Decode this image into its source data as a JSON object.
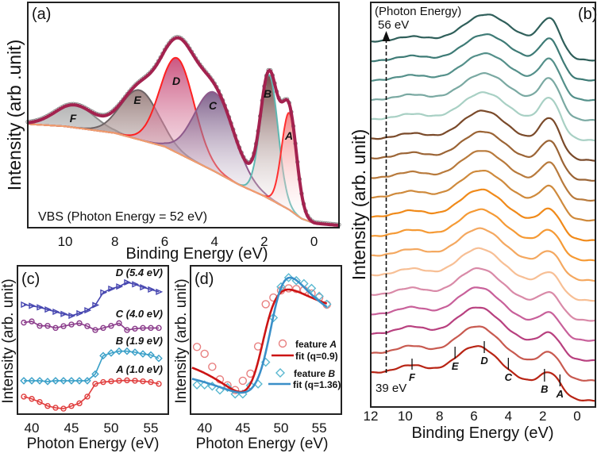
{
  "chart_data": [
    {
      "panel": "(a)",
      "type": "line",
      "xlabel": "Binding Energy (eV)",
      "ylabel": "Intensity (arb .unit)",
      "annotation": "VBS (Photon Energy = 52 eV)",
      "xlim": [
        11.5,
        -1
      ],
      "ylim": [
        0,
        100
      ],
      "xticks": [
        10,
        8,
        6,
        4,
        2,
        0
      ],
      "background": {
        "x": [
          11.5,
          10,
          8,
          6,
          4,
          3,
          2,
          1,
          0.5,
          0,
          -1
        ],
        "y": [
          46,
          45,
          42,
          36,
          25,
          19,
          14,
          8,
          4,
          2,
          1
        ]
      },
      "components": [
        {
          "label": "F",
          "center": 9.6,
          "amplitude": 10,
          "sigma": 0.8,
          "stroke": "#8a8a8a",
          "fill": "#a8a8a8"
        },
        {
          "label": "E",
          "center": 7.0,
          "amplitude": 22,
          "sigma": 0.75,
          "stroke": "#6e6466",
          "fill": "#8c6e6c"
        },
        {
          "label": "D",
          "center": 5.5,
          "amplitude": 42,
          "sigma": 0.68,
          "stroke": "#ff2020",
          "fill": "#c2386a"
        },
        {
          "label": "C",
          "center": 4.0,
          "amplitude": 35,
          "sigma": 0.8,
          "stroke": "#8e5a8c",
          "fill": "#6a4678"
        },
        {
          "label": "B",
          "center": 1.8,
          "amplitude": 55,
          "sigma": 0.35,
          "stroke": "#60b8b2",
          "fill": "#5a2a26"
        },
        {
          "label": "A",
          "center": 1.0,
          "amplitude": 43,
          "sigma": 0.3,
          "stroke": "#ff3030",
          "fill": "#f07070"
        }
      ],
      "envelope_color": "#a3224f",
      "data_marker_color": "#8c8c8c",
      "background_color": "#f0a070"
    },
    {
      "panel": "(b)",
      "type": "line",
      "xlabel": "Binding Energy (eV)",
      "ylabel": "Intensity (arb. unit)",
      "xlim": [
        12,
        -1.06
      ],
      "xticks": [
        12,
        10,
        8,
        6,
        4,
        2,
        0
      ],
      "arrow_label": "(Photon Energy)",
      "top_label": "56 eV",
      "bottom_label": "39 eV",
      "spectra": {
        "photon_energy": [
          39,
          40,
          41,
          42,
          43,
          44,
          45,
          46,
          47,
          48,
          49,
          50,
          51,
          52,
          53,
          54,
          55,
          56
        ],
        "colors": [
          "#b82414",
          "#c85a50",
          "#b8407f",
          "#c8609a",
          "#d98aa8",
          "#f7bf95",
          "#f4a860",
          "#f59a35",
          "#f08a1a",
          "#cf8a3c",
          "#b87a3c",
          "#9b6435",
          "#7a4a2a",
          "#a8d0c4",
          "#7aa9a2",
          "#54908a",
          "#3e7b76",
          "#2f5f5a"
        ],
        "peak_AB_amplitude": [
          16,
          16,
          15,
          15,
          15,
          15,
          16,
          17,
          18,
          21,
          25,
          27,
          30,
          30,
          29,
          28,
          28,
          28.5
        ],
        "peak_D_amplitude": [
          40,
          40,
          39,
          39,
          38,
          38,
          38,
          37,
          37,
          36,
          36,
          35,
          36,
          34,
          33,
          33,
          32,
          32
        ]
      },
      "feature_marks": [
        {
          "label": "F",
          "energy": 9.6
        },
        {
          "label": "E",
          "energy": 7.1
        },
        {
          "label": "D",
          "energy": 5.4
        },
        {
          "label": "C",
          "energy": 4.0
        },
        {
          "label": "B",
          "energy": 1.9
        },
        {
          "label": "A",
          "energy": 1.0
        }
      ]
    },
    {
      "panel": "(c)",
      "type": "line",
      "xlabel": "Photon Energy (eV)",
      "ylabel": "Intensity (arb. unit)",
      "xlim": [
        38.2,
        57.2
      ],
      "ylim": [
        0,
        10
      ],
      "xticks": [
        40,
        45,
        50,
        55
      ],
      "x": [
        39,
        40,
        41,
        42,
        43,
        44,
        45,
        46,
        47,
        48,
        49,
        50,
        51,
        52,
        53,
        54,
        55,
        56
      ],
      "series": [
        {
          "name": "D (5.4 eV)",
          "marker": "triangle-right",
          "color": "#4646b0",
          "values": [
            7.38,
            7.3,
            7.2,
            7.05,
            6.9,
            6.75,
            6.63,
            6.8,
            7.0,
            7.35,
            8.2,
            8.45,
            8.6,
            8.88,
            8.75,
            8.55,
            8.4,
            8.24
          ]
        },
        {
          "name": "C (4.0 eV)",
          "marker": "circle",
          "color": "#8a3a8a",
          "values": [
            6.17,
            6.25,
            5.95,
            5.95,
            5.81,
            5.93,
            6.04,
            6.13,
            5.93,
            5.67,
            5.81,
            5.95,
            6.13,
            5.67,
            5.76,
            5.81,
            5.81,
            5.81
          ]
        },
        {
          "name": "B (1.9 eV)",
          "marker": "diamond",
          "color": "#3aa0c8",
          "values": [
            2.25,
            2.25,
            2.25,
            2.2,
            2.25,
            2.25,
            2.25,
            2.25,
            2.25,
            2.7,
            3.94,
            4.12,
            4.24,
            4.24,
            4.17,
            4.06,
            3.99,
            3.76
          ]
        },
        {
          "name": "A (1.0 eV)",
          "marker": "circle",
          "color": "#e03c3c",
          "values": [
            1.18,
            1.03,
            0.82,
            0.55,
            0.43,
            0.37,
            0.55,
            0.73,
            1.18,
            2.04,
            2.16,
            2.21,
            2.25,
            2.28,
            2.25,
            2.21,
            2.16,
            2.04
          ]
        }
      ]
    },
    {
      "panel": "(d)",
      "type": "scatter",
      "xlabel": "Photon Energy (eV)",
      "ylabel": "Intensity (arb. unit)",
      "xlim": [
        38.16,
        57.9
      ],
      "ylim": [
        0,
        10
      ],
      "xticks": [
        40,
        45,
        50,
        55
      ],
      "x": [
        39,
        40,
        41,
        42,
        43,
        44,
        45,
        46,
        47,
        48,
        49,
        50,
        51,
        52,
        53,
        54,
        55,
        56
      ],
      "series": [
        {
          "name": "feature A",
          "marker": "circle",
          "color": "#e88080",
          "values": [
            4.53,
            4.07,
            3.19,
            2.34,
            1.94,
            1.62,
            2.25,
            2.73,
            4.56,
            7.41,
            7.86,
            8.34,
            8.48,
            8.43,
            8.36,
            8.13,
            7.86,
            7.38
          ]
        },
        {
          "name": "feature B",
          "marker": "diamond",
          "color": "#5ab8d0",
          "values": [
            1.97,
            1.97,
            1.88,
            1.62,
            1.8,
            1.35,
            1.35,
            1.93,
            2.03,
            3.5,
            6.5,
            8.58,
            9.2,
            9.0,
            8.8,
            8.48,
            7.95,
            7.41
          ]
        }
      ],
      "fits": [
        {
          "name": "fit (q=0.9)",
          "q": 0.9,
          "resonance_energy": 47.5,
          "half_width": 3.13,
          "scale": 3.81,
          "offset": 1.5,
          "color": "#cc1414",
          "label_color": "#e05a5a"
        },
        {
          "name": "fit (q=1.36)",
          "q": 1.36,
          "resonance_energy": 48.95,
          "half_width": 3.05,
          "scale": 2.72,
          "offset": 1.45,
          "color": "#3a8fc8",
          "label_color": "#3a9fc0"
        }
      ],
      "feature_labels": [
        {
          "prefix": "feature ",
          "letter": "A",
          "color": "#e86060"
        },
        {
          "prefix": "feature ",
          "letter": "B",
          "color": "#3aa8c8"
        }
      ]
    }
  ]
}
